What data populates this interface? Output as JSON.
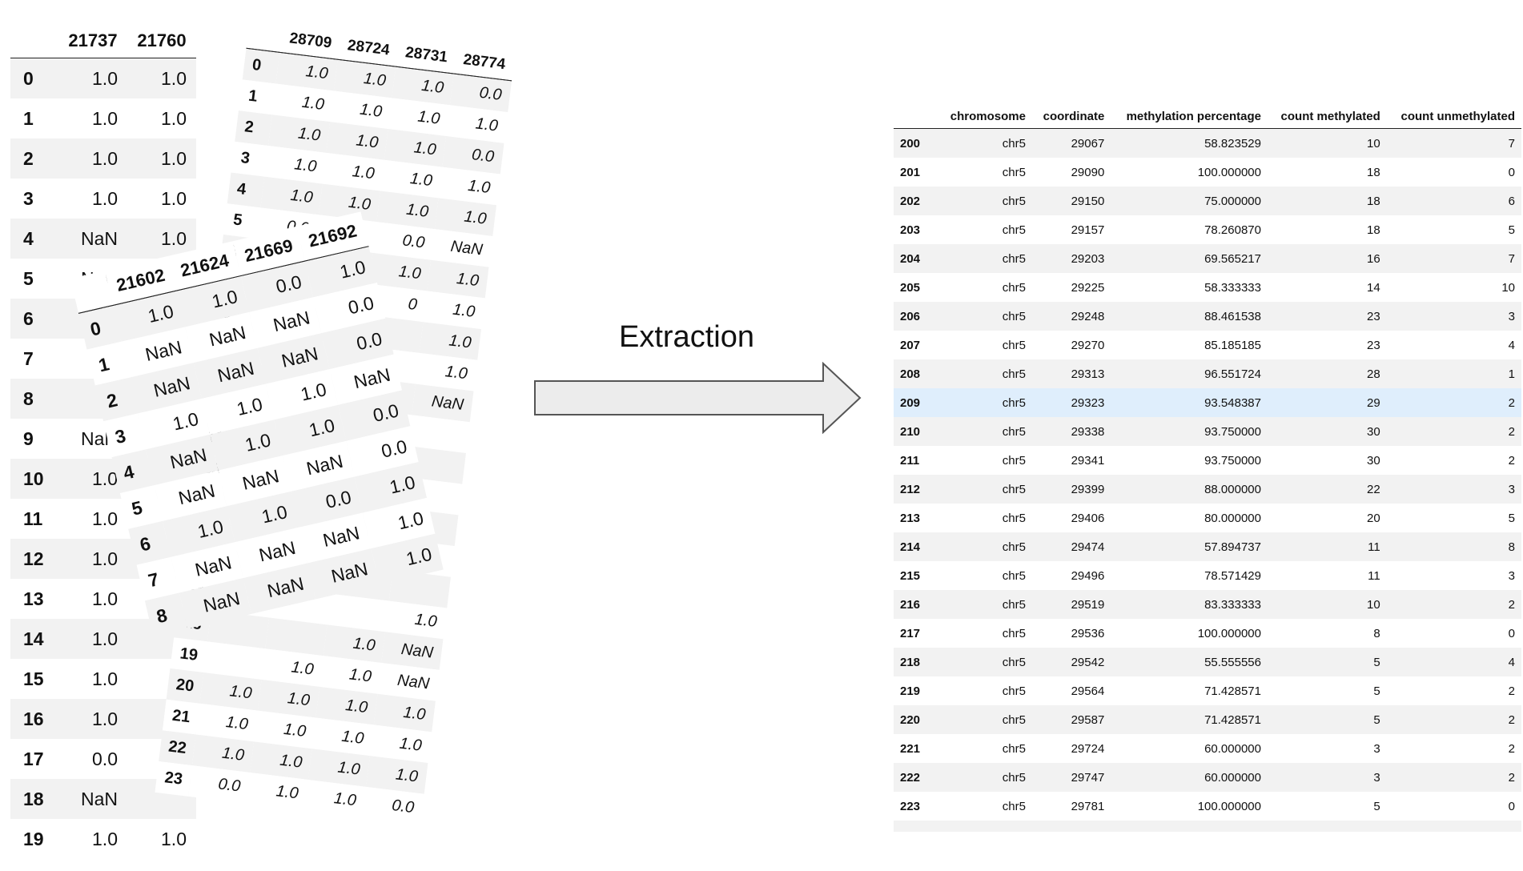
{
  "label": "Extraction",
  "left_tables": [
    {
      "columns": [
        "21737",
        "21760"
      ],
      "rows": [
        {
          "index": "0",
          "values": [
            "1.0",
            "1.0"
          ]
        },
        {
          "index": "1",
          "values": [
            "1.0",
            "1.0"
          ]
        },
        {
          "index": "2",
          "values": [
            "1.0",
            "1.0"
          ]
        },
        {
          "index": "3",
          "values": [
            "1.0",
            "1.0"
          ]
        },
        {
          "index": "4",
          "values": [
            "NaN",
            "1.0"
          ]
        },
        {
          "index": "5",
          "values": [
            "NaN",
            "1.0"
          ]
        },
        {
          "index": "6",
          "values": [
            "",
            ""
          ]
        },
        {
          "index": "7",
          "values": [
            "",
            ""
          ]
        },
        {
          "index": "8",
          "values": [
            "",
            ""
          ]
        },
        {
          "index": "9",
          "values": [
            "NaN",
            ""
          ]
        },
        {
          "index": "10",
          "values": [
            "1.0",
            ""
          ]
        },
        {
          "index": "11",
          "values": [
            "1.0",
            ""
          ]
        },
        {
          "index": "12",
          "values": [
            "1.0",
            ""
          ]
        },
        {
          "index": "13",
          "values": [
            "1.0",
            ""
          ]
        },
        {
          "index": "14",
          "values": [
            "1.0",
            ""
          ]
        },
        {
          "index": "15",
          "values": [
            "1.0",
            ""
          ]
        },
        {
          "index": "16",
          "values": [
            "1.0",
            ""
          ]
        },
        {
          "index": "17",
          "values": [
            "0.0",
            ""
          ]
        },
        {
          "index": "18",
          "values": [
            "NaN",
            ""
          ]
        },
        {
          "index": "19",
          "values": [
            "1.0",
            "1.0"
          ]
        }
      ]
    },
    {
      "columns": [
        "28709",
        "28724",
        "28731",
        "28774"
      ],
      "rows": [
        {
          "index": "0",
          "values": [
            "1.0",
            "1.0",
            "1.0",
            "0.0"
          ]
        },
        {
          "index": "1",
          "values": [
            "1.0",
            "1.0",
            "1.0",
            "1.0"
          ]
        },
        {
          "index": "2",
          "values": [
            "1.0",
            "1.0",
            "1.0",
            "0.0"
          ]
        },
        {
          "index": "3",
          "values": [
            "1.0",
            "1.0",
            "1.0",
            "1.0"
          ]
        },
        {
          "index": "4",
          "values": [
            "1.0",
            "1.0",
            "1.0",
            "1.0"
          ]
        },
        {
          "index": "5",
          "values": [
            "0.0",
            "",
            "0.0",
            "NaN"
          ]
        },
        {
          "index": "6",
          "values": [
            "",
            "",
            "1.0",
            "1.0"
          ]
        },
        {
          "index": "7",
          "values": [
            "",
            "",
            "0",
            "1.0"
          ]
        },
        {
          "index": "8",
          "values": [
            "",
            "",
            "",
            "1.0"
          ]
        },
        {
          "index": "9",
          "values": [
            "",
            "",
            "",
            "1.0"
          ]
        },
        {
          "index": "10",
          "values": [
            "",
            "",
            "",
            "NaN"
          ]
        },
        {
          "index": "11",
          "values": [
            "",
            "",
            "",
            ""
          ]
        },
        {
          "index": "12",
          "values": [
            "",
            "",
            "",
            ""
          ]
        },
        {
          "index": "13",
          "values": [
            "",
            "",
            "",
            ""
          ]
        },
        {
          "index": "14",
          "values": [
            "",
            "",
            "",
            ""
          ]
        },
        {
          "index": "15",
          "values": [
            "",
            "",
            "",
            ""
          ]
        },
        {
          "index": "16",
          "values": [
            "",
            "",
            "",
            ""
          ]
        },
        {
          "index": "17",
          "values": [
            "",
            "",
            "",
            "1.0"
          ]
        },
        {
          "index": "18",
          "values": [
            "",
            "",
            "1.0",
            "NaN"
          ]
        },
        {
          "index": "19",
          "values": [
            "",
            "1.0",
            "1.0",
            "NaN"
          ]
        },
        {
          "index": "20",
          "values": [
            "1.0",
            "1.0",
            "1.0",
            "1.0"
          ]
        },
        {
          "index": "21",
          "values": [
            "1.0",
            "1.0",
            "1.0",
            "1.0"
          ]
        },
        {
          "index": "22",
          "values": [
            "1.0",
            "1.0",
            "1.0",
            "1.0"
          ]
        },
        {
          "index": "23",
          "values": [
            "0.0",
            "1.0",
            "1.0",
            "0.0"
          ]
        }
      ]
    },
    {
      "columns": [
        "21602",
        "21624",
        "21669",
        "21692"
      ],
      "rows": [
        {
          "index": "0",
          "values": [
            "1.0",
            "1.0",
            "0.0",
            "1.0"
          ]
        },
        {
          "index": "1",
          "values": [
            "NaN",
            "NaN",
            "NaN",
            "0.0"
          ]
        },
        {
          "index": "2",
          "values": [
            "NaN",
            "NaN",
            "NaN",
            "0.0"
          ]
        },
        {
          "index": "3",
          "values": [
            "1.0",
            "1.0",
            "1.0",
            "NaN"
          ]
        },
        {
          "index": "4",
          "values": [
            "NaN",
            "1.0",
            "1.0",
            "0.0"
          ]
        },
        {
          "index": "5",
          "values": [
            "NaN",
            "NaN",
            "NaN",
            "0.0"
          ]
        },
        {
          "index": "6",
          "values": [
            "1.0",
            "1.0",
            "0.0",
            "1.0"
          ]
        },
        {
          "index": "7",
          "values": [
            "NaN",
            "NaN",
            "NaN",
            "1.0"
          ]
        },
        {
          "index": "8",
          "values": [
            "NaN",
            "NaN",
            "NaN",
            "1.0"
          ]
        }
      ]
    }
  ],
  "right_table": {
    "columns": [
      "chromosome",
      "coordinate",
      "methylation percentage",
      "count methylated",
      "count unmethylated"
    ],
    "highlight_index": "209",
    "highlight_color": "#dfeefc",
    "rows": [
      {
        "index": "200",
        "values": [
          "chr5",
          "29067",
          "58.823529",
          "10",
          "7"
        ]
      },
      {
        "index": "201",
        "values": [
          "chr5",
          "29090",
          "100.000000",
          "18",
          "0"
        ]
      },
      {
        "index": "202",
        "values": [
          "chr5",
          "29150",
          "75.000000",
          "18",
          "6"
        ]
      },
      {
        "index": "203",
        "values": [
          "chr5",
          "29157",
          "78.260870",
          "18",
          "5"
        ]
      },
      {
        "index": "204",
        "values": [
          "chr5",
          "29203",
          "69.565217",
          "16",
          "7"
        ]
      },
      {
        "index": "205",
        "values": [
          "chr5",
          "29225",
          "58.333333",
          "14",
          "10"
        ]
      },
      {
        "index": "206",
        "values": [
          "chr5",
          "29248",
          "88.461538",
          "23",
          "3"
        ]
      },
      {
        "index": "207",
        "values": [
          "chr5",
          "29270",
          "85.185185",
          "23",
          "4"
        ]
      },
      {
        "index": "208",
        "values": [
          "chr5",
          "29313",
          "96.551724",
          "28",
          "1"
        ]
      },
      {
        "index": "209",
        "values": [
          "chr5",
          "29323",
          "93.548387",
          "29",
          "2"
        ]
      },
      {
        "index": "210",
        "values": [
          "chr5",
          "29338",
          "93.750000",
          "30",
          "2"
        ]
      },
      {
        "index": "211",
        "values": [
          "chr5",
          "29341",
          "93.750000",
          "30",
          "2"
        ]
      },
      {
        "index": "212",
        "values": [
          "chr5",
          "29399",
          "88.000000",
          "22",
          "3"
        ]
      },
      {
        "index": "213",
        "values": [
          "chr5",
          "29406",
          "80.000000",
          "20",
          "5"
        ]
      },
      {
        "index": "214",
        "values": [
          "chr5",
          "29474",
          "57.894737",
          "11",
          "8"
        ]
      },
      {
        "index": "215",
        "values": [
          "chr5",
          "29496",
          "78.571429",
          "11",
          "3"
        ]
      },
      {
        "index": "216",
        "values": [
          "chr5",
          "29519",
          "83.333333",
          "10",
          "2"
        ]
      },
      {
        "index": "217",
        "values": [
          "chr5",
          "29536",
          "100.000000",
          "8",
          "0"
        ]
      },
      {
        "index": "218",
        "values": [
          "chr5",
          "29542",
          "55.555556",
          "5",
          "4"
        ]
      },
      {
        "index": "219",
        "values": [
          "chr5",
          "29564",
          "71.428571",
          "5",
          "2"
        ]
      },
      {
        "index": "220",
        "values": [
          "chr5",
          "29587",
          "71.428571",
          "5",
          "2"
        ]
      },
      {
        "index": "221",
        "values": [
          "chr5",
          "29724",
          "60.000000",
          "3",
          "2"
        ]
      },
      {
        "index": "222",
        "values": [
          "chr5",
          "29747",
          "60.000000",
          "3",
          "2"
        ]
      },
      {
        "index": "223",
        "values": [
          "chr5",
          "29781",
          "100.000000",
          "5",
          "0"
        ]
      }
    ]
  }
}
